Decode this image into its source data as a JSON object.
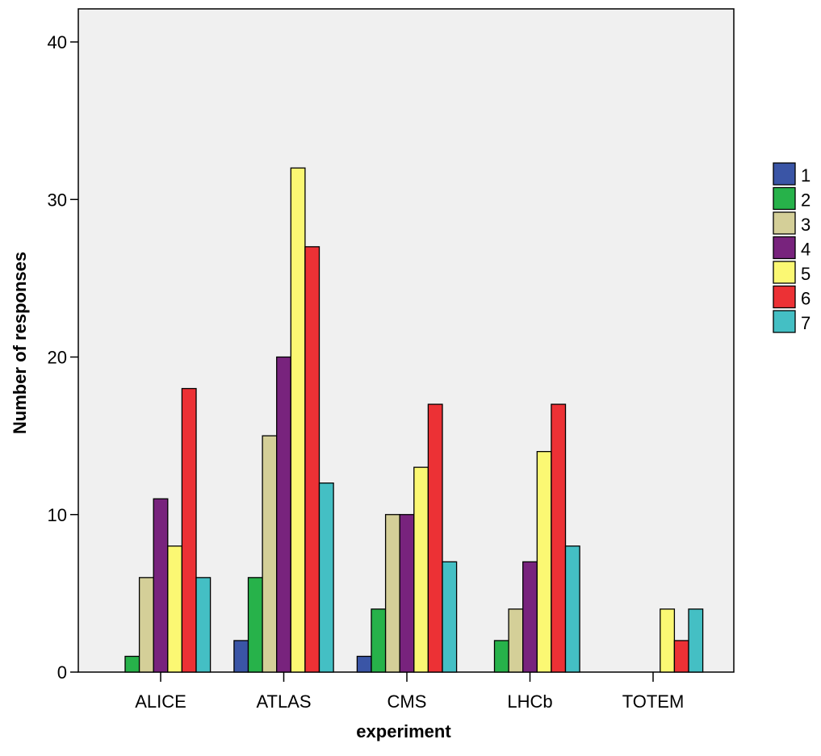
{
  "chart_data": {
    "type": "bar",
    "title": "",
    "xlabel": "experiment",
    "ylabel": "Number of responses",
    "categories": [
      "ALICE",
      "ATLAS",
      "CMS",
      "LHCb",
      "TOTEM"
    ],
    "ylim": [
      0,
      40
    ],
    "yticks": [
      "0",
      "10",
      "20",
      "30",
      "40"
    ],
    "grid": false,
    "plot_background": "#f0f0f0",
    "legend_position": "right",
    "series": [
      {
        "name": "1",
        "color": "#3a55a6",
        "values": [
          0,
          2,
          1,
          0,
          0
        ]
      },
      {
        "name": "2",
        "color": "#27b24a",
        "values": [
          1,
          6,
          4,
          2,
          0
        ]
      },
      {
        "name": "3",
        "color": "#d4cf98",
        "values": [
          6,
          15,
          10,
          4,
          0
        ]
      },
      {
        "name": "4",
        "color": "#78237d",
        "values": [
          11,
          20,
          10,
          7,
          0
        ]
      },
      {
        "name": "5",
        "color": "#fbf873",
        "values": [
          8,
          32,
          13,
          14,
          4
        ]
      },
      {
        "name": "6",
        "color": "#ec3135",
        "values": [
          18,
          27,
          17,
          17,
          2
        ]
      },
      {
        "name": "7",
        "color": "#44bfc4",
        "values": [
          6,
          12,
          7,
          8,
          4
        ]
      }
    ]
  }
}
